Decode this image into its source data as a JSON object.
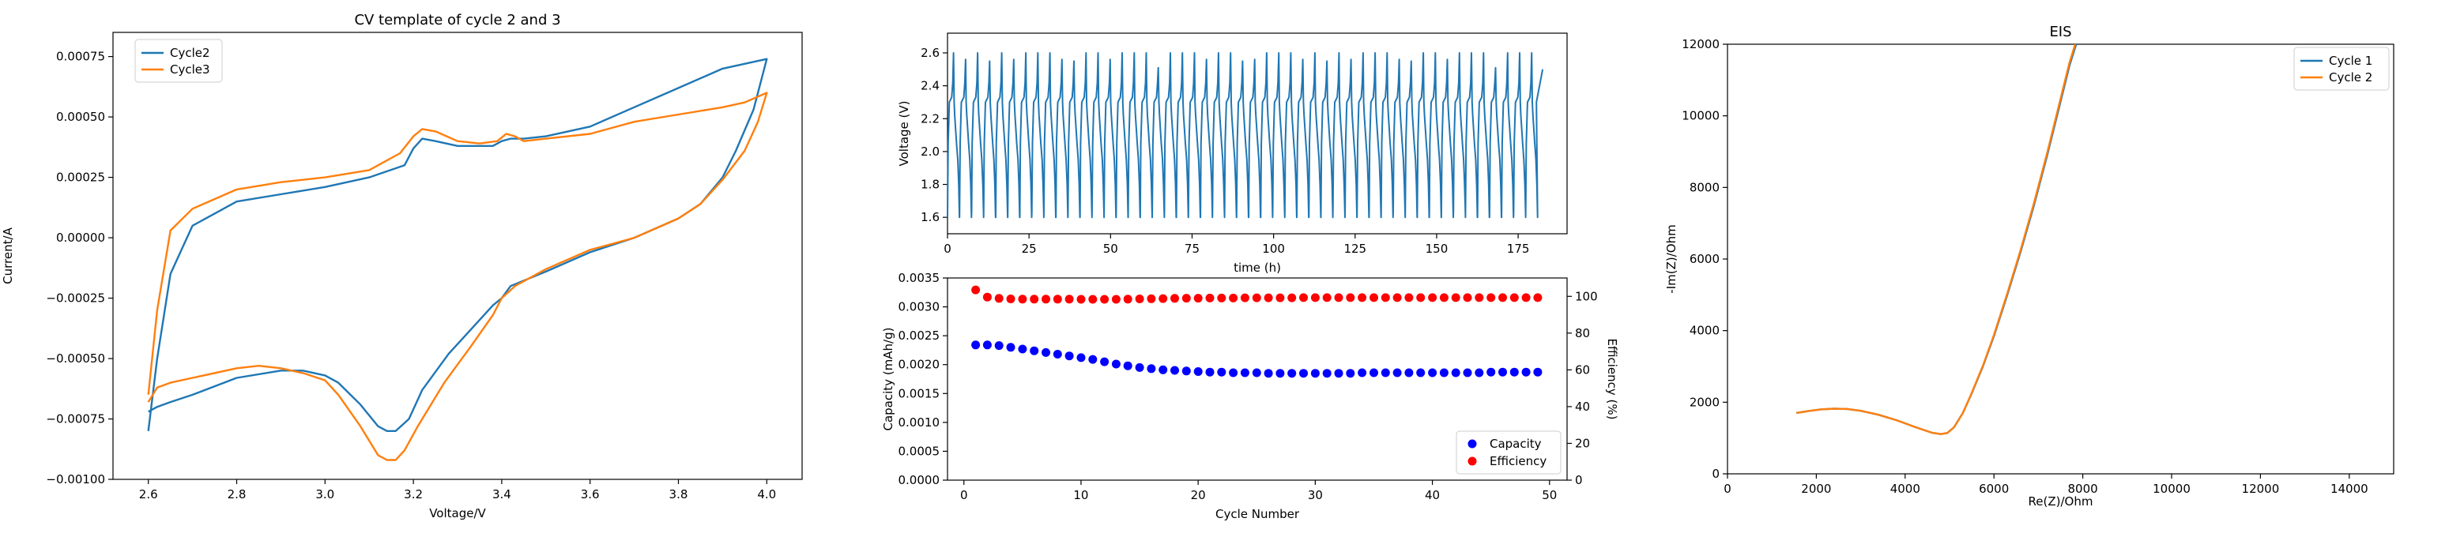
{
  "chart_data": [
    {
      "id": "cv",
      "type": "line",
      "title": "CV template of cycle 2 and 3",
      "xlabel": "Voltage/V",
      "ylabel": "Current/A",
      "xlim": [
        2.52,
        4.08
      ],
      "ylim": [
        -0.001,
        0.00085
      ],
      "xticks": [
        2.6,
        2.8,
        3.0,
        3.2,
        3.4,
        3.6,
        3.8,
        4.0
      ],
      "xtick_labels": [
        "2.6",
        "2.8",
        "3.0",
        "3.2",
        "3.4",
        "3.6",
        "3.8",
        "4.0"
      ],
      "yticks": [
        -0.001,
        -0.00075,
        -0.0005,
        -0.00025,
        0,
        0.00025,
        0.0005,
        0.00075
      ],
      "ytick_labels": [
        "−0.00100",
        "−0.00075",
        "−0.00050",
        "−0.00025",
        "0.00000",
        "0.00025",
        "0.00050",
        "0.00075"
      ],
      "legend_position": "upper-left",
      "series": [
        {
          "name": "Cycle2",
          "color": "#1f77b4",
          "x": [
            2.6,
            2.62,
            2.65,
            2.7,
            2.8,
            2.9,
            3.0,
            3.1,
            3.18,
            3.2,
            3.22,
            3.25,
            3.3,
            3.35,
            3.38,
            3.4,
            3.42,
            3.45,
            3.5,
            3.6,
            3.7,
            3.8,
            3.9,
            3.95,
            4.0,
            3.97,
            3.93,
            3.9,
            3.85,
            3.8,
            3.7,
            3.6,
            3.5,
            3.42,
            3.4,
            3.38,
            3.33,
            3.28,
            3.22,
            3.19,
            3.16,
            3.14,
            3.12,
            3.08,
            3.03,
            3.0,
            2.95,
            2.9,
            2.8,
            2.7,
            2.65,
            2.62,
            2.6
          ],
          "y": [
            -0.0008,
            -0.0005,
            -0.00015,
            5e-05,
            0.00015,
            0.00018,
            0.00021,
            0.00025,
            0.0003,
            0.00037,
            0.00041,
            0.0004,
            0.00038,
            0.00038,
            0.00038,
            0.0004,
            0.00041,
            0.00041,
            0.00042,
            0.00046,
            0.00054,
            0.00062,
            0.0007,
            0.00072,
            0.00074,
            0.00053,
            0.00036,
            0.00025,
            0.00014,
            8e-05,
            0.0,
            -6e-05,
            -0.00014,
            -0.0002,
            -0.00025,
            -0.00028,
            -0.00038,
            -0.00048,
            -0.00063,
            -0.00075,
            -0.0008,
            -0.0008,
            -0.00078,
            -0.00069,
            -0.0006,
            -0.00057,
            -0.00055,
            -0.00055,
            -0.00058,
            -0.00065,
            -0.00068,
            -0.0007,
            -0.00072
          ]
        },
        {
          "name": "Cycle3",
          "color": "#ff7f0e",
          "x": [
            2.6,
            2.62,
            2.65,
            2.7,
            2.8,
            2.9,
            3.0,
            3.1,
            3.17,
            3.2,
            3.22,
            3.25,
            3.3,
            3.35,
            3.39,
            3.41,
            3.43,
            3.45,
            3.5,
            3.6,
            3.7,
            3.8,
            3.9,
            3.95,
            4.0,
            3.98,
            3.95,
            3.9,
            3.85,
            3.8,
            3.7,
            3.6,
            3.5,
            3.43,
            3.4,
            3.38,
            3.33,
            3.27,
            3.21,
            3.18,
            3.16,
            3.14,
            3.12,
            3.08,
            3.03,
            3.0,
            2.95,
            2.9,
            2.85,
            2.8,
            2.7,
            2.65,
            2.62,
            2.6
          ],
          "y": [
            -0.00065,
            -0.0003,
            3e-05,
            0.00012,
            0.0002,
            0.00023,
            0.00025,
            0.00028,
            0.00035,
            0.00042,
            0.00045,
            0.00044,
            0.0004,
            0.00039,
            0.0004,
            0.00043,
            0.00042,
            0.0004,
            0.00041,
            0.00043,
            0.00048,
            0.00051,
            0.00054,
            0.00056,
            0.0006,
            0.00048,
            0.00036,
            0.00024,
            0.00014,
            8e-05,
            0.0,
            -5e-05,
            -0.00013,
            -0.0002,
            -0.00025,
            -0.00032,
            -0.00045,
            -0.0006,
            -0.00078,
            -0.00088,
            -0.00092,
            -0.00092,
            -0.0009,
            -0.00078,
            -0.00065,
            -0.00059,
            -0.00056,
            -0.00054,
            -0.00053,
            -0.00054,
            -0.00058,
            -0.0006,
            -0.00062,
            -0.00068
          ]
        }
      ]
    },
    {
      "id": "voltage",
      "type": "line",
      "title": "",
      "xlabel": "time (h)",
      "ylabel": "Voltage (V)",
      "xlim": [
        0,
        190
      ],
      "ylim": [
        1.5,
        2.72
      ],
      "xticks": [
        0,
        25,
        50,
        75,
        100,
        125,
        150,
        175
      ],
      "xtick_labels": [
        "0",
        "25",
        "50",
        "75",
        "100",
        "125",
        "150",
        "175"
      ],
      "yticks": [
        1.6,
        1.8,
        2.0,
        2.2,
        2.4,
        2.6
      ],
      "ytick_labels": [
        "1.6",
        "1.8",
        "2.0",
        "2.2",
        "2.4",
        "2.6"
      ],
      "color": "#1f77b4",
      "cycles": {
        "count": 49,
        "t_start": 0,
        "t_end": 181,
        "v_min": 1.6,
        "v_max": 2.6,
        "plateau_low": 2.0,
        "plateau_high": 2.3
      }
    },
    {
      "id": "capacity",
      "type": "scatter",
      "title": "",
      "xlabel": "Cycle Number",
      "ylabel": "Capacity (mAh/g)",
      "y2label": "Efficiency (%)",
      "xlim": [
        -1.4,
        51.5
      ],
      "ylim": [
        0,
        0.0035
      ],
      "y2lim": [
        0,
        110
      ],
      "xticks": [
        0,
        10,
        20,
        30,
        40,
        50
      ],
      "xtick_labels": [
        "0",
        "10",
        "20",
        "30",
        "40",
        "50"
      ],
      "yticks": [
        0,
        0.0005,
        0.001,
        0.0015,
        0.002,
        0.0025,
        0.003,
        0.0035
      ],
      "ytick_labels": [
        "0.0000",
        "0.0005",
        "0.0010",
        "0.0015",
        "0.0020",
        "0.0025",
        "0.0030",
        "0.0035"
      ],
      "y2ticks": [
        0,
        20,
        40,
        60,
        80,
        100
      ],
      "y2tick_labels": [
        "0",
        "20",
        "40",
        "60",
        "80",
        "100"
      ],
      "legend_position": "lower-right",
      "series": [
        {
          "name": "Capacity",
          "color": "#0000ff",
          "axis": "left",
          "x": [
            1,
            2,
            3,
            4,
            5,
            6,
            7,
            8,
            9,
            10,
            11,
            12,
            13,
            14,
            15,
            16,
            17,
            18,
            19,
            20,
            21,
            22,
            23,
            24,
            25,
            26,
            27,
            28,
            29,
            30,
            31,
            32,
            33,
            34,
            35,
            36,
            37,
            38,
            39,
            40,
            41,
            42,
            43,
            44,
            45,
            46,
            47,
            48,
            49
          ],
          "values": [
            0.00234,
            0.00234,
            0.00233,
            0.0023,
            0.00227,
            0.00224,
            0.00221,
            0.00218,
            0.00215,
            0.00212,
            0.00209,
            0.00205,
            0.00201,
            0.00198,
            0.00195,
            0.00193,
            0.00191,
            0.0019,
            0.00189,
            0.00188,
            0.00187,
            0.00187,
            0.00186,
            0.00186,
            0.00186,
            0.00185,
            0.00185,
            0.00185,
            0.00185,
            0.00185,
            0.00185,
            0.00185,
            0.00185,
            0.00186,
            0.00186,
            0.00186,
            0.00186,
            0.00186,
            0.00186,
            0.00186,
            0.00186,
            0.00186,
            0.00186,
            0.00186,
            0.00187,
            0.00187,
            0.00187,
            0.00187,
            0.00187
          ]
        },
        {
          "name": "Efficiency",
          "color": "#ff0000",
          "axis": "right",
          "x": [
            1,
            2,
            3,
            4,
            5,
            6,
            7,
            8,
            9,
            10,
            11,
            12,
            13,
            14,
            15,
            16,
            17,
            18,
            19,
            20,
            21,
            22,
            23,
            24,
            25,
            26,
            27,
            28,
            29,
            30,
            31,
            32,
            33,
            34,
            35,
            36,
            37,
            38,
            39,
            40,
            41,
            42,
            43,
            44,
            45,
            46,
            47,
            48,
            49
          ],
          "values": [
            103.5,
            99.6,
            98.9,
            98.6,
            98.5,
            98.5,
            98.5,
            98.5,
            98.5,
            98.4,
            98.4,
            98.4,
            98.4,
            98.5,
            98.6,
            98.7,
            98.8,
            98.9,
            99.0,
            99.0,
            99.1,
            99.1,
            99.1,
            99.2,
            99.2,
            99.2,
            99.2,
            99.2,
            99.3,
            99.3,
            99.3,
            99.3,
            99.3,
            99.3,
            99.3,
            99.3,
            99.3,
            99.3,
            99.3,
            99.3,
            99.3,
            99.3,
            99.3,
            99.3,
            99.3,
            99.3,
            99.3,
            99.3,
            99.3
          ]
        }
      ]
    },
    {
      "id": "eis",
      "type": "line",
      "title": "EIS",
      "xlabel": "Re(Z)/Ohm",
      "ylabel": "-Im(Z)/Ohm",
      "xlim": [
        0,
        15000
      ],
      "ylim": [
        0,
        12000
      ],
      "xticks": [
        0,
        2000,
        4000,
        6000,
        8000,
        10000,
        12000,
        14000
      ],
      "xtick_labels": [
        "0",
        "2000",
        "4000",
        "6000",
        "8000",
        "10000",
        "12000",
        "14000"
      ],
      "yticks": [
        0,
        2000,
        4000,
        6000,
        8000,
        10000,
        12000
      ],
      "ytick_labels": [
        "0",
        "2000",
        "4000",
        "6000",
        "8000",
        "10000",
        "12000"
      ],
      "legend_position": "upper-right",
      "series": [
        {
          "name": "Cycle 1",
          "color": "#1f77b4",
          "x": [
            1550,
            1800,
            2100,
            2400,
            2700,
            3000,
            3400,
            3800,
            4200,
            4600,
            4800,
            4950,
            5100,
            5300,
            5500,
            5750,
            6000,
            6300,
            6600,
            6900,
            7200,
            7500,
            7700,
            7850
          ],
          "y": [
            1700,
            1750,
            1800,
            1820,
            1810,
            1760,
            1650,
            1500,
            1320,
            1150,
            1110,
            1140,
            1300,
            1700,
            2250,
            3000,
            3850,
            5000,
            6200,
            7500,
            8900,
            10400,
            11400,
            12000
          ]
        },
        {
          "name": "Cycle 2",
          "color": "#ff7f0e",
          "x": [
            1550,
            1800,
            2100,
            2400,
            2700,
            3000,
            3400,
            3800,
            4200,
            4600,
            4800,
            4950,
            5100,
            5300,
            5500,
            5750,
            6000,
            6300,
            6600,
            6900,
            7200,
            7500,
            7700,
            7830
          ],
          "y": [
            1700,
            1750,
            1800,
            1820,
            1810,
            1760,
            1650,
            1500,
            1320,
            1150,
            1110,
            1140,
            1300,
            1700,
            2260,
            3020,
            3880,
            5040,
            6250,
            7560,
            8970,
            10480,
            11480,
            12000
          ]
        }
      ]
    }
  ]
}
